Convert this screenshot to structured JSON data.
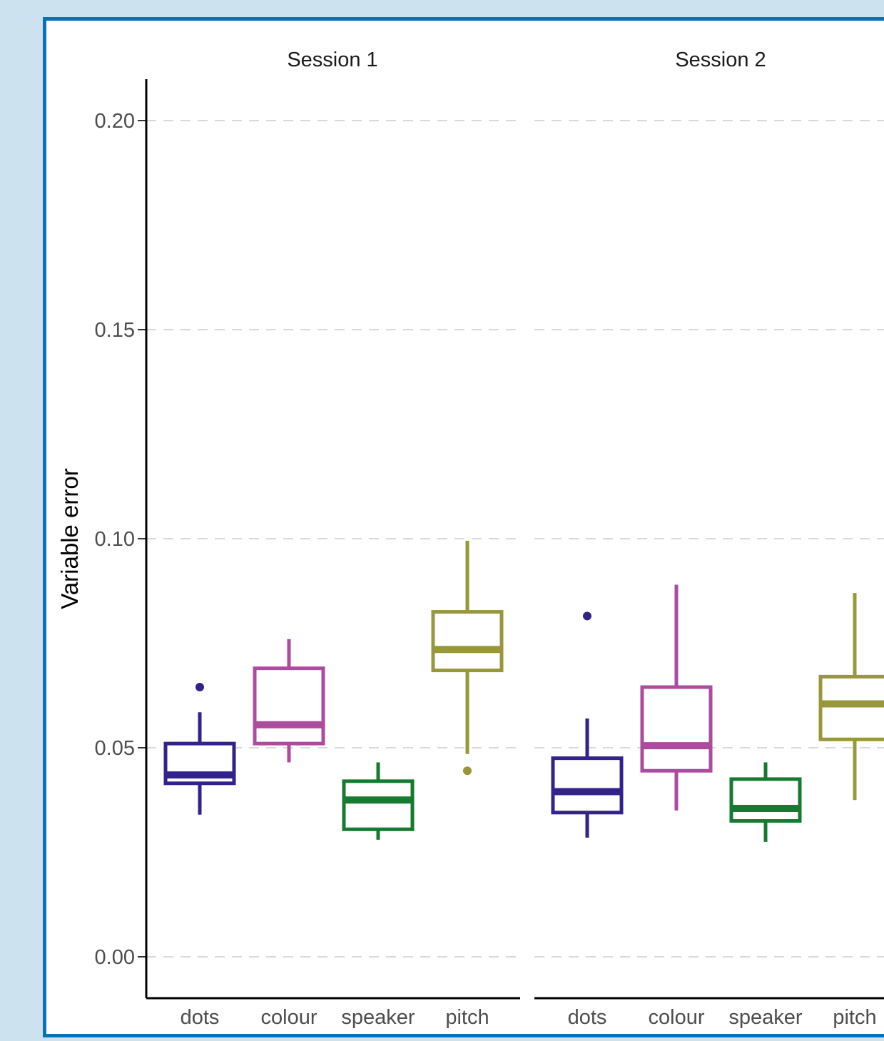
{
  "chart_data": {
    "type": "box",
    "ylabel": "Variable error",
    "ylim": [
      -0.01,
      0.21
    ],
    "yticks": [
      0.0,
      0.05,
      0.1,
      0.15,
      0.2
    ],
    "ytick_labels": [
      "0.00",
      "0.05",
      "0.10",
      "0.15",
      "0.20"
    ],
    "grid": "horizontal dashed",
    "categories": [
      "dots",
      "colour",
      "speaker",
      "pitch"
    ],
    "colors": {
      "dots": "#33228b",
      "colour": "#ad4b9f",
      "speaker": "#167a30",
      "pitch": "#98983a"
    },
    "panels": [
      {
        "title": "Session 1",
        "boxes": [
          {
            "category": "dots",
            "whisker_low": 0.034,
            "q1": 0.0415,
            "median": 0.0435,
            "q3": 0.051,
            "whisker_high": 0.0585,
            "outliers": [
              0.0645
            ]
          },
          {
            "category": "colour",
            "whisker_low": 0.0465,
            "q1": 0.051,
            "median": 0.0555,
            "q3": 0.069,
            "whisker_high": 0.076,
            "outliers": []
          },
          {
            "category": "speaker",
            "whisker_low": 0.028,
            "q1": 0.0305,
            "median": 0.0375,
            "q3": 0.042,
            "whisker_high": 0.0465,
            "outliers": []
          },
          {
            "category": "pitch",
            "whisker_low": 0.0485,
            "q1": 0.0685,
            "median": 0.0735,
            "q3": 0.0825,
            "whisker_high": 0.0995,
            "outliers": [
              0.0445
            ]
          }
        ]
      },
      {
        "title": "Session 2",
        "boxes": [
          {
            "category": "dots",
            "whisker_low": 0.0285,
            "q1": 0.0345,
            "median": 0.0395,
            "q3": 0.0475,
            "whisker_high": 0.057,
            "outliers": [
              0.0815
            ]
          },
          {
            "category": "colour",
            "whisker_low": 0.035,
            "q1": 0.0445,
            "median": 0.0505,
            "q3": 0.0645,
            "whisker_high": 0.089,
            "outliers": []
          },
          {
            "category": "speaker",
            "whisker_low": 0.0275,
            "q1": 0.0325,
            "median": 0.0355,
            "q3": 0.0425,
            "whisker_high": 0.0465,
            "outliers": []
          },
          {
            "category": "pitch",
            "whisker_low": 0.0375,
            "q1": 0.052,
            "median": 0.0605,
            "q3": 0.067,
            "whisker_high": 0.087,
            "outliers": []
          }
        ]
      }
    ]
  }
}
